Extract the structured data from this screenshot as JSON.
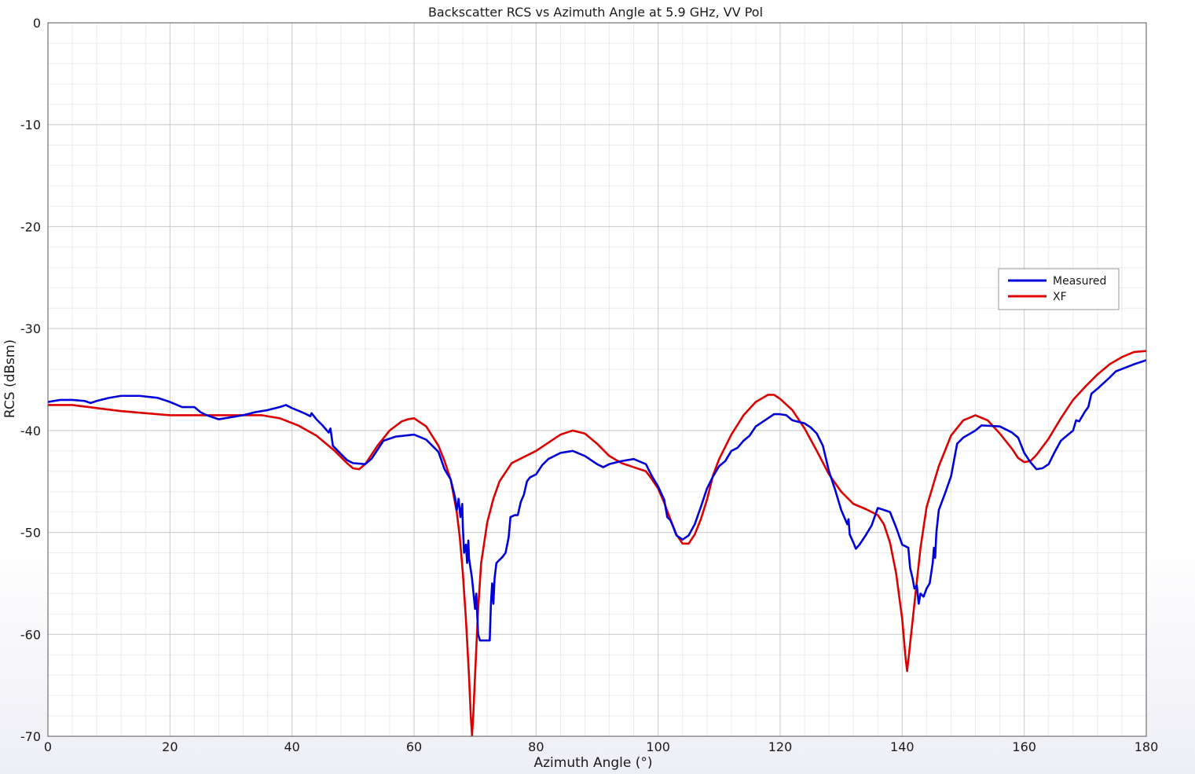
{
  "chart_data": {
    "type": "line",
    "title": "Backscatter RCS vs Azimuth Angle at 5.9 GHz, VV Pol",
    "xlabel": "Azimuth Angle (°)",
    "ylabel": "RCS (dBsm)",
    "xlim": [
      0,
      180
    ],
    "ylim": [
      -70,
      0
    ],
    "xticks": [
      0,
      20,
      40,
      60,
      80,
      100,
      120,
      140,
      160,
      180
    ],
    "yticks": [
      0,
      -10,
      -20,
      -30,
      -40,
      -50,
      -60,
      -70
    ],
    "xtick_labels": [
      "0",
      "20",
      "40",
      "60",
      "80",
      "100",
      "120",
      "140",
      "160",
      "180"
    ],
    "ytick_labels": [
      "0",
      "-10",
      "-20",
      "-30",
      "-40",
      "-50",
      "-60",
      "-70"
    ],
    "grid": "major and minor",
    "legend_position": "right",
    "series": [
      {
        "name": "Measured",
        "color": "#0000dd",
        "points": [
          [
            0,
            -37.2
          ],
          [
            1,
            -37.1
          ],
          [
            2,
            -37.0
          ],
          [
            4,
            -37.0
          ],
          [
            6,
            -37.1
          ],
          [
            7,
            -37.3
          ],
          [
            8,
            -37.1
          ],
          [
            10,
            -36.8
          ],
          [
            12,
            -36.6
          ],
          [
            15,
            -36.6
          ],
          [
            18,
            -36.8
          ],
          [
            20,
            -37.2
          ],
          [
            22,
            -37.7
          ],
          [
            24,
            -37.7
          ],
          [
            25,
            -38.2
          ],
          [
            26,
            -38.5
          ],
          [
            27,
            -38.7
          ],
          [
            28,
            -38.9
          ],
          [
            30,
            -38.7
          ],
          [
            32,
            -38.5
          ],
          [
            34,
            -38.2
          ],
          [
            36,
            -38.0
          ],
          [
            38,
            -37.7
          ],
          [
            39,
            -37.5
          ],
          [
            40,
            -37.8
          ],
          [
            42,
            -38.3
          ],
          [
            43,
            -38.6
          ],
          [
            43.2,
            -38.3
          ],
          [
            44,
            -38.9
          ],
          [
            45,
            -39.5
          ],
          [
            46,
            -40.2
          ],
          [
            46.3,
            -39.8
          ],
          [
            46.7,
            -41.5
          ],
          [
            48,
            -42.3
          ],
          [
            49,
            -42.9
          ],
          [
            50,
            -43.2
          ],
          [
            52,
            -43.3
          ],
          [
            53,
            -42.8
          ],
          [
            54,
            -41.9
          ],
          [
            55,
            -41.0
          ],
          [
            57,
            -40.6
          ],
          [
            60,
            -40.4
          ],
          [
            62,
            -40.9
          ],
          [
            64,
            -42.1
          ],
          [
            65,
            -43.8
          ],
          [
            66,
            -44.8
          ],
          [
            66.7,
            -46.5
          ],
          [
            67,
            -47.8
          ],
          [
            67.3,
            -46.7
          ],
          [
            67.6,
            -48.5
          ],
          [
            67.9,
            -47.2
          ],
          [
            68,
            -49.5
          ],
          [
            68.2,
            -52.0
          ],
          [
            68.5,
            -51.2
          ],
          [
            68.7,
            -53.0
          ],
          [
            68.9,
            -50.8
          ],
          [
            69,
            -52.5
          ],
          [
            69.5,
            -54.5
          ],
          [
            70,
            -57.5
          ],
          [
            70.2,
            -56.0
          ],
          [
            70.5,
            -60.0
          ],
          [
            70.8,
            -60.6
          ],
          [
            71,
            -60.6
          ],
          [
            72,
            -60.6
          ],
          [
            72.4,
            -60.6
          ],
          [
            72.6,
            -57.0
          ],
          [
            72.8,
            -55.0
          ],
          [
            73,
            -57.0
          ],
          [
            73.2,
            -54.5
          ],
          [
            73.5,
            -53.0
          ],
          [
            74,
            -52.7
          ],
          [
            74.5,
            -52.4
          ],
          [
            75,
            -52.0
          ],
          [
            75.5,
            -50.5
          ],
          [
            75.8,
            -48.5
          ],
          [
            76.5,
            -48.3
          ],
          [
            77,
            -48.3
          ],
          [
            77.5,
            -47.0
          ],
          [
            78,
            -46.3
          ],
          [
            78.5,
            -45.0
          ],
          [
            79,
            -44.6
          ],
          [
            80,
            -44.3
          ],
          [
            81,
            -43.4
          ],
          [
            82,
            -42.8
          ],
          [
            84,
            -42.2
          ],
          [
            86,
            -42.0
          ],
          [
            88,
            -42.5
          ],
          [
            90,
            -43.3
          ],
          [
            91,
            -43.6
          ],
          [
            92,
            -43.3
          ],
          [
            94,
            -43.0
          ],
          [
            96,
            -42.8
          ],
          [
            98,
            -43.3
          ],
          [
            99,
            -44.5
          ],
          [
            100,
            -45.5
          ],
          [
            101,
            -46.8
          ],
          [
            101.5,
            -48.5
          ],
          [
            102,
            -48.8
          ],
          [
            102.5,
            -49.5
          ],
          [
            103,
            -50.3
          ],
          [
            104,
            -50.7
          ],
          [
            105,
            -50.3
          ],
          [
            106,
            -49.2
          ],
          [
            107,
            -47.5
          ],
          [
            108,
            -45.7
          ],
          [
            109,
            -44.5
          ],
          [
            110,
            -43.5
          ],
          [
            111,
            -43.0
          ],
          [
            112,
            -42.0
          ],
          [
            113,
            -41.7
          ],
          [
            114,
            -41.0
          ],
          [
            115,
            -40.5
          ],
          [
            116,
            -39.6
          ],
          [
            118,
            -38.8
          ],
          [
            119,
            -38.4
          ],
          [
            120,
            -38.4
          ],
          [
            121,
            -38.5
          ],
          [
            122,
            -39.0
          ],
          [
            124,
            -39.3
          ],
          [
            125,
            -39.7
          ],
          [
            126,
            -40.3
          ],
          [
            127,
            -41.5
          ],
          [
            128,
            -44.0
          ],
          [
            129,
            -45.8
          ],
          [
            130,
            -47.8
          ],
          [
            131,
            -49.2
          ],
          [
            131.2,
            -48.7
          ],
          [
            131.4,
            -50.2
          ],
          [
            132,
            -51.0
          ],
          [
            132.4,
            -51.6
          ],
          [
            133,
            -51.2
          ],
          [
            134,
            -50.3
          ],
          [
            135,
            -49.3
          ],
          [
            136,
            -47.6
          ],
          [
            137,
            -47.8
          ],
          [
            138,
            -48.0
          ],
          [
            139,
            -49.5
          ],
          [
            140,
            -51.2
          ],
          [
            141,
            -51.5
          ],
          [
            141.3,
            -53.5
          ],
          [
            141.7,
            -54.5
          ],
          [
            142,
            -55.5
          ],
          [
            142.4,
            -55.2
          ],
          [
            142.7,
            -57.0
          ],
          [
            143,
            -56.0
          ],
          [
            143.5,
            -56.3
          ],
          [
            144,
            -55.5
          ],
          [
            144.5,
            -55.0
          ],
          [
            145,
            -53.0
          ],
          [
            145.2,
            -51.5
          ],
          [
            145.4,
            -52.5
          ],
          [
            145.6,
            -50.0
          ],
          [
            146,
            -47.8
          ],
          [
            147,
            -46.2
          ],
          [
            148,
            -44.5
          ],
          [
            149,
            -41.3
          ],
          [
            150,
            -40.7
          ],
          [
            152,
            -40.0
          ],
          [
            153,
            -39.5
          ],
          [
            156,
            -39.6
          ],
          [
            158,
            -40.2
          ],
          [
            159,
            -40.7
          ],
          [
            160,
            -42.2
          ],
          [
            161,
            -43.1
          ],
          [
            162,
            -43.8
          ],
          [
            163,
            -43.7
          ],
          [
            164,
            -43.3
          ],
          [
            165,
            -42.1
          ],
          [
            166,
            -41.0
          ],
          [
            168,
            -40.0
          ],
          [
            168.5,
            -39.0
          ],
          [
            169,
            -39.1
          ],
          [
            170,
            -38.1
          ],
          [
            170.5,
            -37.7
          ],
          [
            171,
            -36.4
          ],
          [
            172,
            -35.9
          ],
          [
            174,
            -34.8
          ],
          [
            175,
            -34.2
          ],
          [
            178,
            -33.5
          ],
          [
            180,
            -33.1
          ]
        ]
      },
      {
        "name": "XF",
        "color": "#dd0000",
        "points": [
          [
            0,
            -37.5
          ],
          [
            4,
            -37.5
          ],
          [
            8,
            -37.8
          ],
          [
            12,
            -38.1
          ],
          [
            16,
            -38.3
          ],
          [
            20,
            -38.5
          ],
          [
            25,
            -38.5
          ],
          [
            30,
            -38.5
          ],
          [
            35,
            -38.5
          ],
          [
            38,
            -38.8
          ],
          [
            41,
            -39.5
          ],
          [
            44,
            -40.5
          ],
          [
            47,
            -42.0
          ],
          [
            49,
            -43.2
          ],
          [
            50,
            -43.7
          ],
          [
            51,
            -43.8
          ],
          [
            52,
            -43.3
          ],
          [
            54,
            -41.5
          ],
          [
            56,
            -40.0
          ],
          [
            58,
            -39.1
          ],
          [
            59,
            -38.9
          ],
          [
            60,
            -38.8
          ],
          [
            62,
            -39.6
          ],
          [
            64,
            -41.5
          ],
          [
            65,
            -43.0
          ],
          [
            66,
            -44.8
          ],
          [
            67,
            -48.0
          ],
          [
            67.5,
            -50.5
          ],
          [
            68,
            -54.0
          ],
          [
            68.5,
            -58.5
          ],
          [
            69,
            -64.0
          ],
          [
            69.3,
            -68.0
          ],
          [
            69.5,
            -69.9
          ],
          [
            69.7,
            -68.0
          ],
          [
            70,
            -64.0
          ],
          [
            70.5,
            -57.5
          ],
          [
            71,
            -53.0
          ],
          [
            72,
            -49.0
          ],
          [
            73,
            -46.7
          ],
          [
            74,
            -45.0
          ],
          [
            76,
            -43.2
          ],
          [
            78,
            -42.6
          ],
          [
            80,
            -42.0
          ],
          [
            82,
            -41.2
          ],
          [
            84,
            -40.4
          ],
          [
            86,
            -40.0
          ],
          [
            88,
            -40.3
          ],
          [
            90,
            -41.3
          ],
          [
            92,
            -42.5
          ],
          [
            94,
            -43.2
          ],
          [
            96,
            -43.6
          ],
          [
            98,
            -44.0
          ],
          [
            99,
            -44.8
          ],
          [
            100,
            -45.7
          ],
          [
            101,
            -47.1
          ],
          [
            102,
            -48.7
          ],
          [
            103,
            -50.2
          ],
          [
            104,
            -51.1
          ],
          [
            105,
            -51.1
          ],
          [
            106,
            -50.2
          ],
          [
            107,
            -48.7
          ],
          [
            108,
            -46.8
          ],
          [
            109,
            -44.4
          ],
          [
            110,
            -42.8
          ],
          [
            112,
            -40.4
          ],
          [
            114,
            -38.5
          ],
          [
            116,
            -37.2
          ],
          [
            118,
            -36.5
          ],
          [
            119,
            -36.5
          ],
          [
            120,
            -36.9
          ],
          [
            122,
            -38.0
          ],
          [
            124,
            -39.8
          ],
          [
            126,
            -42.0
          ],
          [
            128,
            -44.3
          ],
          [
            130,
            -46.0
          ],
          [
            132,
            -47.2
          ],
          [
            134,
            -47.7
          ],
          [
            136,
            -48.3
          ],
          [
            137,
            -49.2
          ],
          [
            138,
            -51.0
          ],
          [
            139,
            -54.0
          ],
          [
            140,
            -58.5
          ],
          [
            140.5,
            -62.0
          ],
          [
            140.8,
            -63.6
          ],
          [
            141.1,
            -62.0
          ],
          [
            142,
            -57.0
          ],
          [
            143,
            -51.5
          ],
          [
            144,
            -47.5
          ],
          [
            146,
            -43.5
          ],
          [
            148,
            -40.5
          ],
          [
            150,
            -39.0
          ],
          [
            152,
            -38.5
          ],
          [
            154,
            -39.0
          ],
          [
            156,
            -40.3
          ],
          [
            158,
            -41.8
          ],
          [
            159,
            -42.7
          ],
          [
            160,
            -43.1
          ],
          [
            161,
            -43.0
          ],
          [
            162,
            -42.4
          ],
          [
            164,
            -40.8
          ],
          [
            166,
            -38.8
          ],
          [
            168,
            -37.0
          ],
          [
            170,
            -35.7
          ],
          [
            172,
            -34.5
          ],
          [
            174,
            -33.5
          ],
          [
            176,
            -32.8
          ],
          [
            178,
            -32.3
          ],
          [
            180,
            -32.2
          ]
        ]
      }
    ]
  }
}
